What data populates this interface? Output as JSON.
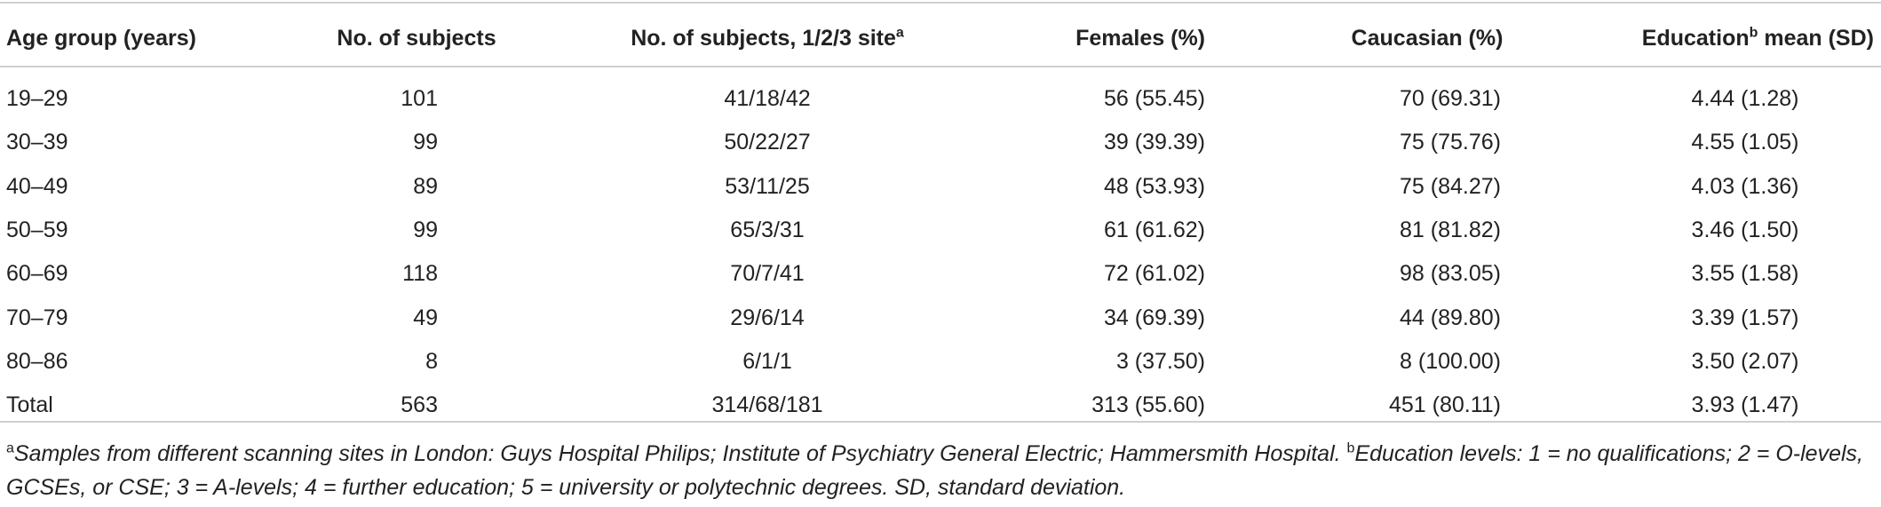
{
  "table": {
    "header": [
      [
        "Age group (years)"
      ],
      [
        "No. of subjects"
      ],
      [
        "No. of subjects, 1/2/3 site",
        "a"
      ],
      [
        "Females (%)"
      ],
      [
        "Caucasian (%)"
      ],
      [
        "Education",
        "b",
        " mean (SD)"
      ]
    ],
    "rows": [
      [
        "19–29",
        "101",
        "41/18/42",
        "56 (55.45)",
        "70 (69.31)",
        "4.44 (1.28)"
      ],
      [
        "30–39",
        "99",
        "50/22/27",
        "39 (39.39)",
        "75 (75.76)",
        "4.55 (1.05)"
      ],
      [
        "40–49",
        "89",
        "53/11/25",
        "48 (53.93)",
        "75 (84.27)",
        "4.03 (1.36)"
      ],
      [
        "50–59",
        "99",
        "65/3/31",
        "61 (61.62)",
        "81 (81.82)",
        "3.46 (1.50)"
      ],
      [
        "60–69",
        "118",
        "70/7/41",
        "72 (61.02)",
        "98 (83.05)",
        "3.55 (1.58)"
      ],
      [
        "70–79",
        "49",
        "29/6/14",
        "34 (69.39)",
        "44 (89.80)",
        "3.39 (1.57)"
      ],
      [
        "80–86",
        "8",
        "6/1/1",
        "3 (37.50)",
        "8 (100.00)",
        "3.50 (2.07)"
      ],
      [
        "Total",
        "563",
        "314/68/181",
        "313 (55.60)",
        "451 (80.11)",
        "3.93 (1.47)"
      ]
    ],
    "footnote": [
      "a",
      "Samples from different scanning sites in London: Guys Hospital Philips; Institute of Psychiatry General Electric; Hammersmith Hospital. ",
      "b",
      "Education levels: 1 = no qualifications; 2 = O-levels, GCSEs, or CSE; 3 = A-levels; 4 = further education; 5 = university or polytechnic degrees. SD, standard deviation."
    ]
  }
}
